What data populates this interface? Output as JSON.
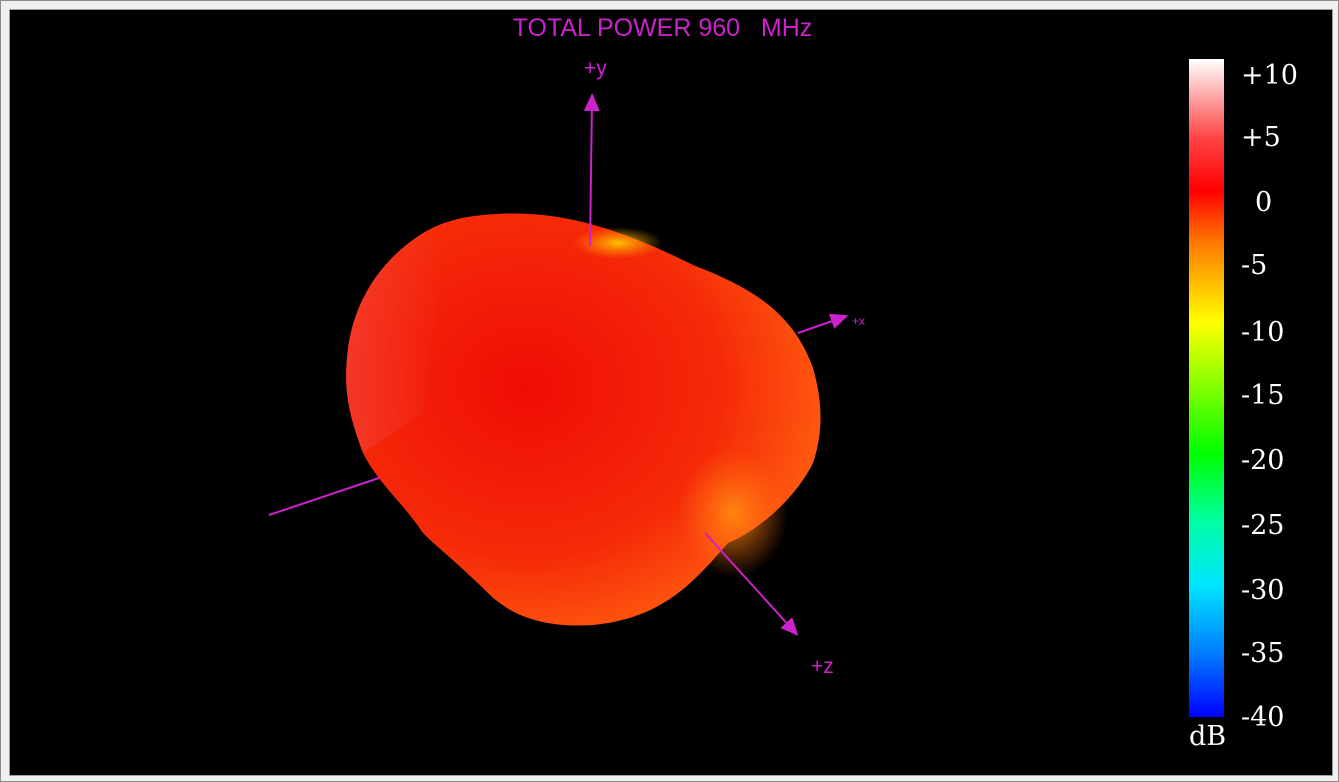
{
  "plot": {
    "title": "TOTAL POWER 960   MHz",
    "axes": {
      "y": "+y",
      "x": "+x",
      "z": "+z"
    },
    "axis_color": "#cc22cc"
  },
  "colorbar": {
    "ticks": [
      "+10",
      "+5",
      "0",
      "-5",
      "-10",
      "-15",
      "-20",
      "-25",
      "-30",
      "-35",
      "-40"
    ],
    "unit": "dB",
    "range": [
      -40,
      10
    ]
  }
}
